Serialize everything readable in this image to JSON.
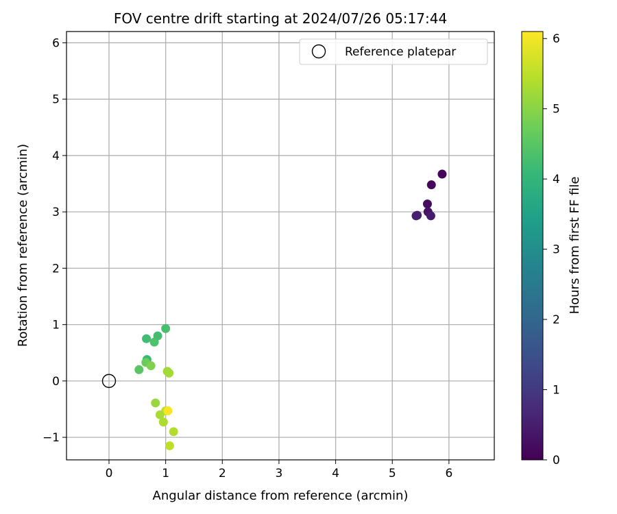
{
  "chart_data": {
    "type": "scatter",
    "title": "FOV centre drift starting at 2024/07/26 05:17:44",
    "xlabel": "Angular distance from reference (arcmin)",
    "ylabel": "Rotation from reference (arcmin)",
    "xlim": [
      -0.75,
      6.8
    ],
    "ylim": [
      -1.4,
      6.2
    ],
    "xticks": [
      0,
      1,
      2,
      3,
      4,
      5,
      6
    ],
    "yticks": [
      -1,
      0,
      1,
      2,
      3,
      4,
      5,
      6
    ],
    "ytick_labels": [
      "−1",
      "0",
      "1",
      "2",
      "3",
      "4",
      "5",
      "6"
    ],
    "grid": true,
    "legend": {
      "placement": "top-right",
      "entries": [
        "Reference platepar"
      ]
    },
    "reference_point": {
      "label": "Reference platepar",
      "x": 0,
      "y": 0,
      "marker": "open-circle",
      "color": "#000000"
    },
    "colorbar": {
      "label": "Hours from first FF file",
      "min": 0,
      "max": 6.1,
      "ticks": [
        0,
        1,
        2,
        3,
        4,
        5,
        6
      ],
      "colormap": "viridis",
      "stops": [
        "#440154",
        "#482878",
        "#3e4a89",
        "#31688e",
        "#26828e",
        "#1f9e89",
        "#35b779",
        "#6ece58",
        "#b5de2b",
        "#fde725"
      ]
    },
    "points": [
      {
        "x": 5.88,
        "y": 3.67,
        "t": 0.05
      },
      {
        "x": 5.69,
        "y": 3.48,
        "t": 0.1
      },
      {
        "x": 5.62,
        "y": 3.14,
        "t": 0.2
      },
      {
        "x": 5.63,
        "y": 3.0,
        "t": 0.3
      },
      {
        "x": 5.42,
        "y": 2.93,
        "t": 0.5
      },
      {
        "x": 5.44,
        "y": 2.94,
        "t": 0.55
      },
      {
        "x": 5.68,
        "y": 2.93,
        "t": 0.45
      },
      {
        "x": 1.0,
        "y": 0.93,
        "t": 4.3
      },
      {
        "x": 0.86,
        "y": 0.8,
        "t": 4.25
      },
      {
        "x": 0.66,
        "y": 0.75,
        "t": 4.2
      },
      {
        "x": 0.8,
        "y": 0.69,
        "t": 4.35
      },
      {
        "x": 0.67,
        "y": 0.38,
        "t": 4.1
      },
      {
        "x": 0.53,
        "y": 0.2,
        "t": 4.5
      },
      {
        "x": 0.65,
        "y": 0.33,
        "t": 4.7
      },
      {
        "x": 0.74,
        "y": 0.27,
        "t": 4.9
      },
      {
        "x": 1.03,
        "y": 0.17,
        "t": 5.2
      },
      {
        "x": 1.06,
        "y": 0.14,
        "t": 5.25
      },
      {
        "x": 0.82,
        "y": -0.39,
        "t": 5.15
      },
      {
        "x": 1.0,
        "y": -0.53,
        "t": 5.45
      },
      {
        "x": 0.9,
        "y": -0.6,
        "t": 5.3
      },
      {
        "x": 0.96,
        "y": -0.73,
        "t": 5.35
      },
      {
        "x": 1.14,
        "y": -0.9,
        "t": 5.4
      },
      {
        "x": 1.07,
        "y": -1.15,
        "t": 5.5
      },
      {
        "x": 1.04,
        "y": -0.53,
        "t": 6.05
      }
    ]
  }
}
